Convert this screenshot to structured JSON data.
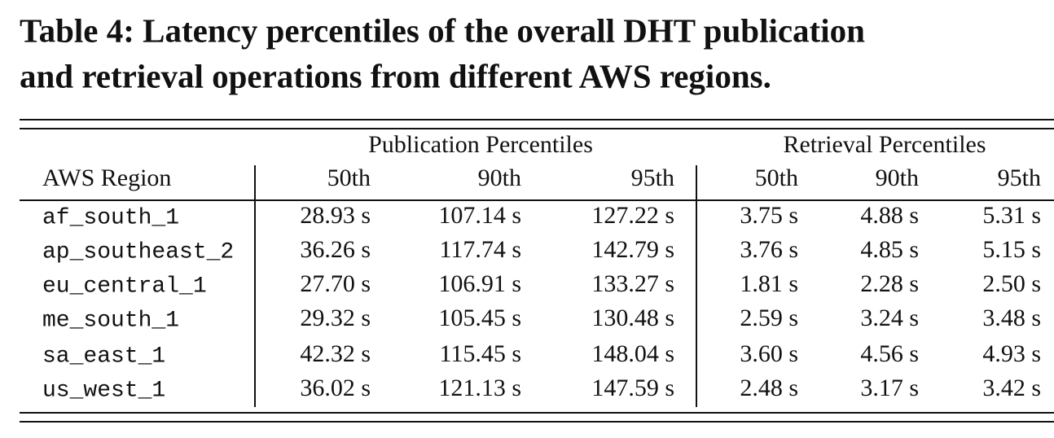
{
  "caption": {
    "lines": [
      "Table 4: Latency percentiles of the overall DHT publication",
      "and retrieval operations from different AWS regions."
    ]
  },
  "table": {
    "header_groups": [
      "Publication Percentiles",
      "Retrieval Percentiles"
    ],
    "columns": [
      "AWS Region",
      "50th",
      "90th",
      "95th",
      "50th",
      "90th",
      "95th"
    ],
    "rows": [
      [
        "af_south_1",
        "28.93 s",
        "107.14 s",
        "127.22 s",
        "3.75 s",
        "4.88 s",
        "5.31 s"
      ],
      [
        "ap_southeast_2",
        "36.26 s",
        "117.74 s",
        "142.79 s",
        "3.76 s",
        "4.85 s",
        "5.15 s"
      ],
      [
        "eu_central_1",
        "27.70 s",
        "106.91 s",
        "133.27 s",
        "1.81 s",
        "2.28 s",
        "2.50 s"
      ],
      [
        "me_south_1",
        "29.32 s",
        "105.45 s",
        "130.48 s",
        "2.59 s",
        "3.24 s",
        "3.48 s"
      ],
      [
        "sa_east_1",
        "42.32 s",
        "115.45 s",
        "148.04 s",
        "3.60 s",
        "4.56 s",
        "4.93 s"
      ],
      [
        "us_west_1",
        "36.02 s",
        "121.13 s",
        "147.59 s",
        "2.48 s",
        "3.17 s",
        "3.42 s"
      ]
    ]
  }
}
